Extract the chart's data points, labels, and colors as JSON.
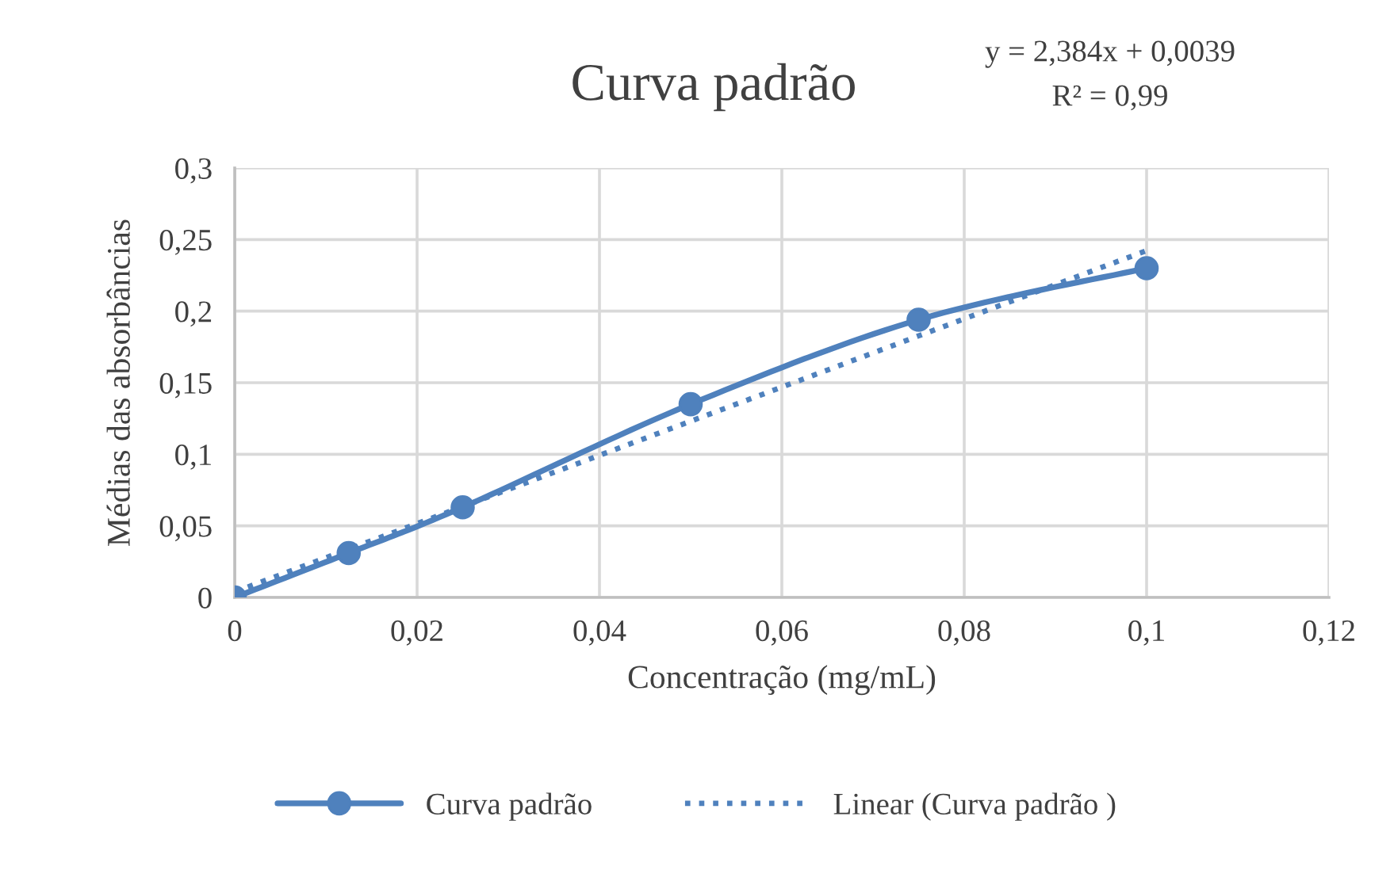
{
  "chart_data": {
    "type": "line",
    "title": "Curva padrão",
    "xlabel": "Concentração (mg/mL)",
    "ylabel": "Médias das absorbâncias",
    "annotations": [
      "y = 2,384x + 0,0039",
      "R² = 0,99"
    ],
    "x": [
      0,
      0.0125,
      0.025,
      0.05,
      0.075,
      0.1
    ],
    "series": [
      {
        "name": "Curva padrão",
        "color": "#4f81bd",
        "values": [
          0,
          0.031,
          0.063,
          0.135,
          0.194,
          0.23
        ],
        "marker": "circle",
        "line_style": "solid"
      },
      {
        "name": "Linear (Curva padrão )",
        "color": "#4f81bd",
        "x": [
          0,
          0.1
        ],
        "values": [
          0.0039,
          0.2423
        ],
        "marker": "none",
        "line_style": "dotted"
      }
    ],
    "xlim": [
      0,
      0.12
    ],
    "xticks": [
      {
        "value": 0,
        "label": "0"
      },
      {
        "value": 0.02,
        "label": "0,02"
      },
      {
        "value": 0.04,
        "label": "0,04"
      },
      {
        "value": 0.06,
        "label": "0,06"
      },
      {
        "value": 0.08,
        "label": "0,08"
      },
      {
        "value": 0.1,
        "label": "0,1"
      },
      {
        "value": 0.12,
        "label": "0,12"
      }
    ],
    "ylim": [
      0,
      0.3
    ],
    "yticks": [
      {
        "value": 0,
        "label": "0"
      },
      {
        "value": 0.05,
        "label": "0,05"
      },
      {
        "value": 0.1,
        "label": "0,1"
      },
      {
        "value": 0.15,
        "label": "0,15"
      },
      {
        "value": 0.2,
        "label": "0,2"
      },
      {
        "value": 0.25,
        "label": "0,25"
      },
      {
        "value": 0.3,
        "label": "0,3"
      }
    ],
    "grid": true,
    "legend": "bottom"
  }
}
